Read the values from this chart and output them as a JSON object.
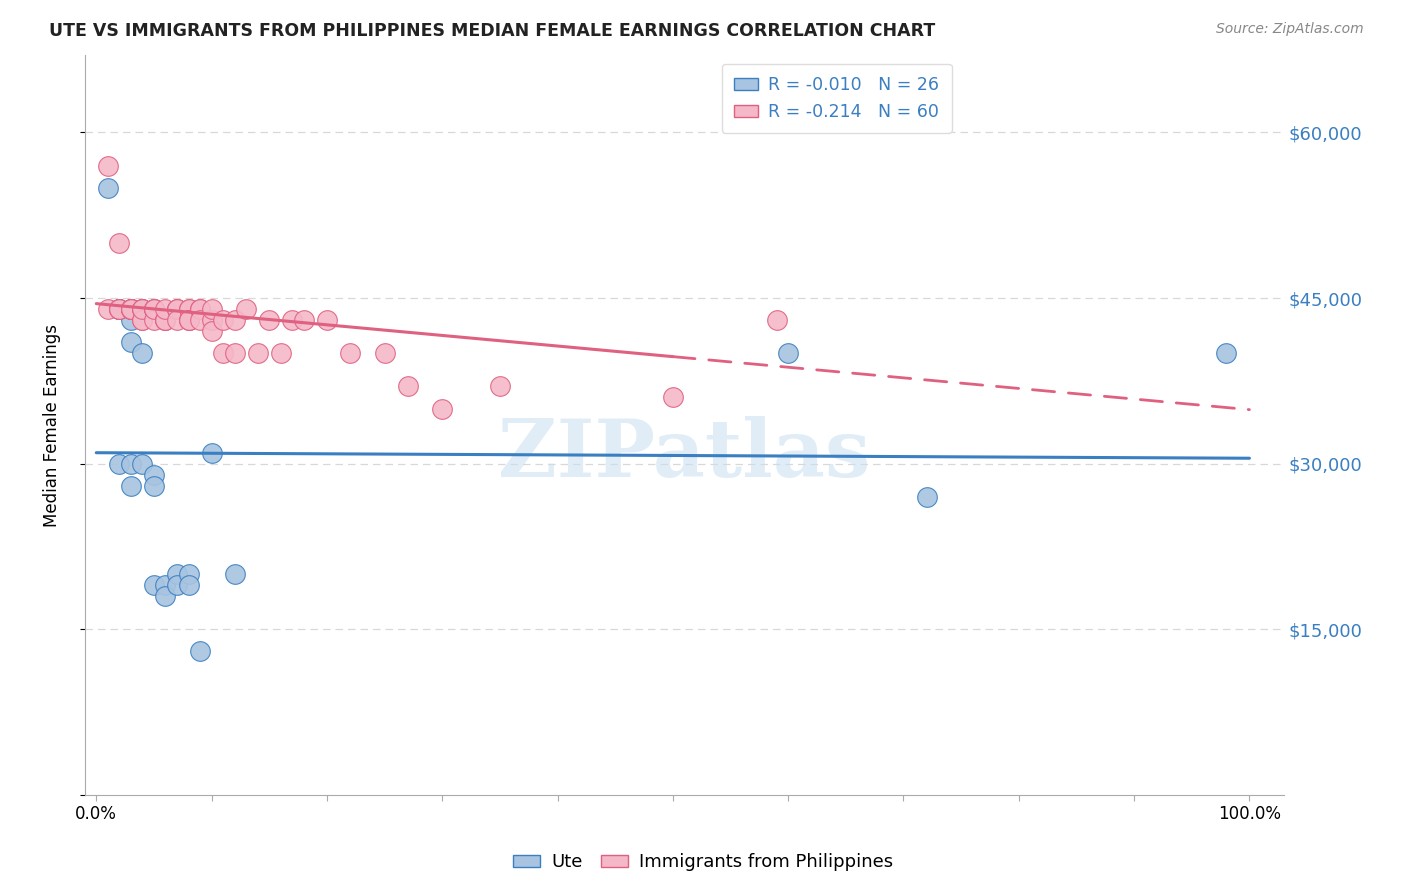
{
  "title": "UTE VS IMMIGRANTS FROM PHILIPPINES MEDIAN FEMALE EARNINGS CORRELATION CHART",
  "source": "Source: ZipAtlas.com",
  "ylabel": "Median Female Earnings",
  "watermark": "ZIPatlas",
  "ute_color": "#a8c4e0",
  "phil_color": "#f4b8c8",
  "ute_line_color": "#3a7fc1",
  "phil_line_color": "#e06080",
  "background_color": "#ffffff",
  "grid_color": "#d8d8d8",
  "legend_r1": "R = -0.010",
  "legend_n1": "N = 26",
  "legend_r2": "R = -0.214",
  "legend_n2": "N = 60",
  "ute_x": [
    1,
    2,
    2,
    2,
    3,
    3,
    3,
    3,
    4,
    4,
    4,
    5,
    5,
    5,
    6,
    6,
    7,
    7,
    8,
    8,
    9,
    10,
    12,
    60,
    72,
    98
  ],
  "ute_y": [
    55000,
    44000,
    44000,
    30000,
    43000,
    41000,
    30000,
    28000,
    44000,
    40000,
    30000,
    29000,
    28000,
    19000,
    19000,
    18000,
    20000,
    19000,
    20000,
    19000,
    13000,
    31000,
    20000,
    40000,
    27000,
    40000
  ],
  "phil_x": [
    1,
    1,
    2,
    2,
    2,
    2,
    3,
    3,
    3,
    3,
    3,
    3,
    3,
    4,
    4,
    4,
    4,
    4,
    5,
    5,
    5,
    5,
    5,
    6,
    6,
    6,
    6,
    7,
    7,
    7,
    7,
    8,
    8,
    8,
    8,
    8,
    9,
    9,
    9,
    10,
    10,
    10,
    11,
    11,
    12,
    12,
    13,
    14,
    15,
    16,
    17,
    18,
    20,
    22,
    25,
    27,
    30,
    35,
    50,
    59
  ],
  "phil_y": [
    57000,
    44000,
    50000,
    44000,
    44000,
    44000,
    44000,
    44000,
    44000,
    44000,
    44000,
    44000,
    44000,
    44000,
    44000,
    43000,
    43000,
    44000,
    44000,
    44000,
    44000,
    43000,
    44000,
    43000,
    43000,
    43000,
    44000,
    44000,
    44000,
    44000,
    43000,
    44000,
    44000,
    43000,
    43000,
    43000,
    44000,
    44000,
    43000,
    43000,
    44000,
    42000,
    43000,
    40000,
    43000,
    40000,
    44000,
    40000,
    43000,
    40000,
    43000,
    43000,
    43000,
    40000,
    40000,
    37000,
    35000,
    37000,
    36000,
    43000
  ]
}
